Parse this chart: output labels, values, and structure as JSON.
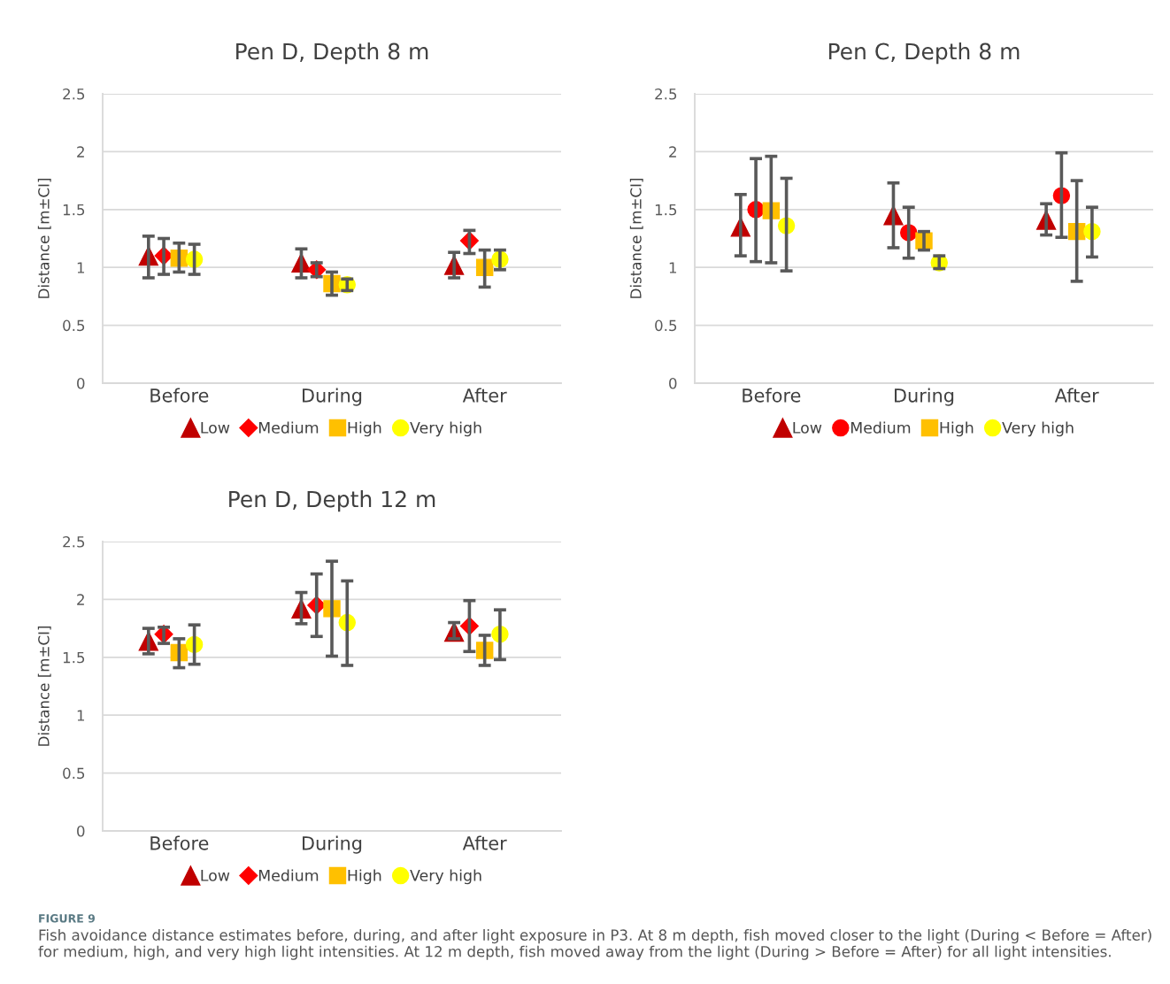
{
  "chart_data": [
    {
      "type": "scatter",
      "title": "Pen D, Depth 8 m",
      "ylabel": "Distance [m±CI]",
      "categories": [
        "Before",
        "During",
        "After"
      ],
      "ylim": [
        0,
        2.5
      ],
      "yticks": [
        0,
        0.5,
        1,
        1.5,
        2,
        2.5
      ],
      "grid": "y",
      "legend": "bottom",
      "series": [
        {
          "name": "Low",
          "color": "#c00000",
          "marker": "triangle",
          "values": [
            1.1,
            1.04,
            1.02
          ],
          "errors": [
            [
              0.91,
              1.27
            ],
            [
              0.91,
              1.16
            ],
            [
              0.91,
              1.13
            ]
          ]
        },
        {
          "name": "Medium",
          "color": "#ff0000",
          "marker": "diamond",
          "values": [
            1.1,
            0.98,
            1.23
          ],
          "errors": [
            [
              0.94,
              1.25
            ],
            [
              0.92,
              1.04
            ],
            [
              1.12,
              1.32
            ]
          ]
        },
        {
          "name": "High",
          "color": "#ffc000",
          "marker": "square",
          "values": [
            1.08,
            0.86,
            1.0
          ],
          "errors": [
            [
              0.96,
              1.21
            ],
            [
              0.76,
              0.96
            ],
            [
              0.83,
              1.15
            ]
          ]
        },
        {
          "name": "Very high",
          "color": "#ffff00",
          "marker": "circle",
          "values": [
            1.07,
            0.85,
            1.07
          ],
          "errors": [
            [
              0.94,
              1.2
            ],
            [
              0.8,
              0.9
            ],
            [
              0.98,
              1.15
            ]
          ]
        }
      ]
    },
    {
      "type": "scatter",
      "title": "Pen C, Depth 8 m",
      "ylabel": "Distance [m±CI]",
      "categories": [
        "Before",
        "During",
        "After"
      ],
      "ylim": [
        0,
        2.5
      ],
      "yticks": [
        0,
        0.5,
        1,
        1.5,
        2,
        2.5
      ],
      "grid": "y",
      "legend": "bottom",
      "series": [
        {
          "name": "Low",
          "color": "#c00000",
          "marker": "triangle",
          "values": [
            1.35,
            1.45,
            1.41
          ],
          "errors": [
            [
              1.1,
              1.63
            ],
            [
              1.17,
              1.73
            ],
            [
              1.28,
              1.55
            ]
          ]
        },
        {
          "name": "Medium",
          "color": "#ff0000",
          "marker": "circle",
          "values": [
            1.5,
            1.3,
            1.62
          ],
          "errors": [
            [
              1.05,
              1.94
            ],
            [
              1.08,
              1.52
            ],
            [
              1.26,
              1.99
            ]
          ]
        },
        {
          "name": "High",
          "color": "#ffc000",
          "marker": "square",
          "values": [
            1.49,
            1.23,
            1.31
          ],
          "errors": [
            [
              1.04,
              1.96
            ],
            [
              1.15,
              1.31
            ],
            [
              0.88,
              1.75
            ]
          ]
        },
        {
          "name": "Very high",
          "color": "#ffff00",
          "marker": "circle",
          "values": [
            1.36,
            1.04,
            1.31
          ],
          "errors": [
            [
              0.97,
              1.77
            ],
            [
              0.99,
              1.1
            ],
            [
              1.09,
              1.52
            ]
          ]
        }
      ]
    },
    {
      "type": "scatter",
      "title": "Pen D, Depth 12 m",
      "ylabel": "Distance [m±CI]",
      "categories": [
        "Before",
        "During",
        "After"
      ],
      "ylim": [
        0,
        2.5
      ],
      "yticks": [
        0,
        0.5,
        1,
        1.5,
        2,
        2.5
      ],
      "grid": "y",
      "legend": "bottom",
      "series": [
        {
          "name": "Low",
          "color": "#c00000",
          "marker": "triangle",
          "values": [
            1.64,
            1.92,
            1.72
          ],
          "errors": [
            [
              1.53,
              1.75
            ],
            [
              1.79,
              2.06
            ],
            [
              1.66,
              1.8
            ]
          ]
        },
        {
          "name": "Medium",
          "color": "#ff0000",
          "marker": "diamond",
          "values": [
            1.7,
            1.95,
            1.77
          ],
          "errors": [
            [
              1.62,
              1.76
            ],
            [
              1.68,
              2.22
            ],
            [
              1.55,
              1.99
            ]
          ]
        },
        {
          "name": "High",
          "color": "#ffc000",
          "marker": "square",
          "values": [
            1.54,
            1.92,
            1.56
          ],
          "errors": [
            [
              1.41,
              1.66
            ],
            [
              1.51,
              2.33
            ],
            [
              1.43,
              1.69
            ]
          ]
        },
        {
          "name": "Very high",
          "color": "#ffff00",
          "marker": "circle",
          "values": [
            1.61,
            1.8,
            1.7
          ],
          "errors": [
            [
              1.44,
              1.78
            ],
            [
              1.43,
              2.16
            ],
            [
              1.48,
              1.91
            ]
          ]
        }
      ],
      "annotations": [
        "FIGURE 9",
        "Fish avoidance distance estimates before, during, and after light exposure in P3. At 8 m depth, fish moved closer to the light (During < Before = After) for medium, high, and very high light intensities. At 12 m depth, fish moved away from the light (During > Before = After) for all light intensities."
      ]
    }
  ]
}
